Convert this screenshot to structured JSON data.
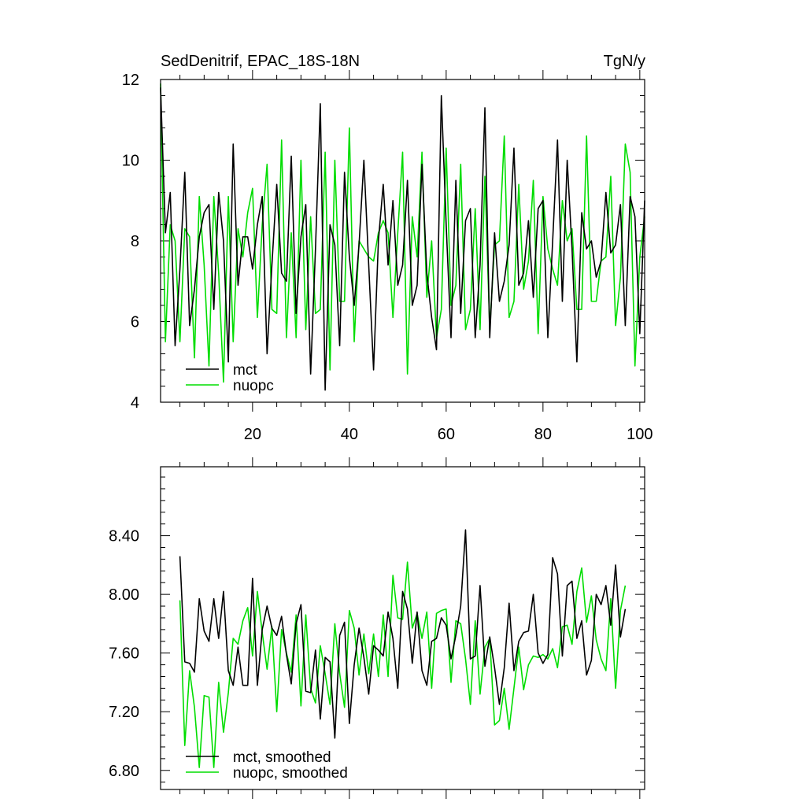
{
  "chart_data": [
    {
      "type": "line",
      "title": "SedDenitrif, EPAC_18S-18N",
      "units": "TgN/y",
      "xlim": [
        1,
        101
      ],
      "ylim": [
        4,
        12
      ],
      "xticks": [
        20,
        40,
        60,
        80,
        100
      ],
      "yticks": [
        4,
        6,
        8,
        10,
        12
      ],
      "ytick_labels": [
        "4",
        "6",
        "8",
        "10",
        "12"
      ],
      "legend_position": "bottom-left",
      "grid": false,
      "series": [
        {
          "name": "mct",
          "color": "#000000",
          "x": [
            1,
            2,
            3,
            4,
            5,
            6,
            7,
            8,
            9,
            10,
            11,
            12,
            13,
            14,
            15,
            16,
            17,
            18,
            19,
            20,
            21,
            22,
            23,
            24,
            25,
            26,
            27,
            28,
            29,
            30,
            31,
            32,
            33,
            34,
            35,
            36,
            37,
            38,
            39,
            40,
            41,
            42,
            43,
            44,
            45,
            46,
            47,
            48,
            49,
            50,
            51,
            52,
            53,
            54,
            55,
            56,
            57,
            58,
            59,
            60,
            61,
            62,
            63,
            64,
            65,
            66,
            67,
            68,
            69,
            70,
            71,
            72,
            73,
            74,
            75,
            76,
            77,
            78,
            79,
            80,
            81,
            82,
            83,
            84,
            85,
            86,
            87,
            88,
            89,
            90,
            91,
            92,
            93,
            94,
            95,
            96,
            97,
            98,
            99,
            100,
            101
          ],
          "y": [
            11.8,
            8.2,
            9.2,
            5.4,
            7.3,
            9.7,
            5.9,
            6.8,
            8.1,
            8.7,
            8.9,
            6.3,
            9.2,
            8.0,
            5.0,
            10.4,
            6.9,
            8.1,
            8.1,
            7.3,
            8.4,
            9.1,
            5.2,
            7.4,
            9.4,
            7.2,
            7.0,
            10.1,
            6.2,
            8.1,
            8.9,
            4.7,
            7.8,
            11.4,
            4.3,
            8.4,
            7.9,
            5.4,
            9.7,
            7.6,
            6.4,
            7.9,
            10.0,
            7.4,
            4.8,
            8.0,
            9.4,
            7.4,
            9.0,
            6.9,
            7.4,
            9.5,
            6.4,
            6.9,
            9.9,
            7.2,
            6.1,
            5.3,
            11.6,
            8.4,
            5.6,
            9.5,
            6.2,
            8.5,
            8.8,
            5.6,
            7.4,
            11.3,
            5.6,
            8.2,
            6.5,
            7.0,
            7.9,
            10.3,
            6.9,
            7.2,
            8.5,
            6.6,
            8.8,
            9.0,
            5.6,
            8.0,
            10.5,
            6.5,
            10.0,
            7.8,
            5.0,
            8.7,
            7.8,
            8.0,
            7.1,
            7.5,
            9.2,
            7.7,
            7.9,
            8.9,
            5.9,
            9.1,
            8.6,
            5.7,
            9.0
          ]
        },
        {
          "name": "nuopc",
          "color": "#00dd00",
          "x": [
            1,
            2,
            3,
            4,
            5,
            6,
            7,
            8,
            9,
            10,
            11,
            12,
            13,
            14,
            15,
            16,
            17,
            18,
            19,
            20,
            21,
            22,
            23,
            24,
            25,
            26,
            27,
            28,
            29,
            30,
            31,
            32,
            33,
            34,
            35,
            36,
            37,
            38,
            39,
            40,
            41,
            42,
            43,
            44,
            45,
            46,
            47,
            48,
            49,
            50,
            51,
            52,
            53,
            54,
            55,
            56,
            57,
            58,
            59,
            60,
            61,
            62,
            63,
            64,
            65,
            66,
            67,
            68,
            69,
            70,
            71,
            72,
            73,
            74,
            75,
            76,
            77,
            78,
            79,
            80,
            81,
            82,
            83,
            84,
            85,
            86,
            87,
            88,
            89,
            90,
            91,
            92,
            93,
            94,
            95,
            96,
            97,
            98,
            99,
            100,
            101
          ],
          "y": [
            11.9,
            5.5,
            8.4,
            8.0,
            5.5,
            8.3,
            8.1,
            5.1,
            9.1,
            7.4,
            4.9,
            9.1,
            7.2,
            4.5,
            9.1,
            5.5,
            8.3,
            7.6,
            8.7,
            9.3,
            6.1,
            8.4,
            9.9,
            6.3,
            6.2,
            10.5,
            5.6,
            8.2,
            5.6,
            10.0,
            5.8,
            8.6,
            6.2,
            6.3,
            10.2,
            4.8,
            10.0,
            6.5,
            6.5,
            10.8,
            5.5,
            8.0,
            7.8,
            7.6,
            7.5,
            8.2,
            8.5,
            8.2,
            6.1,
            8.2,
            10.2,
            4.7,
            8.6,
            7.6,
            10.2,
            6.6,
            8.0,
            5.6,
            6.3,
            10.3,
            6.4,
            6.9,
            9.9,
            5.8,
            6.3,
            8.8,
            5.8,
            9.6,
            5.8,
            7.9,
            8.0,
            10.6,
            6.1,
            6.5,
            9.4,
            6.8,
            7.5,
            9.5,
            5.7,
            9.1,
            7.8,
            7.3,
            6.9,
            9.0,
            8.0,
            8.3,
            6.3,
            6.3,
            10.6,
            6.5,
            6.5,
            7.5,
            7.6,
            9.6,
            5.9,
            7.1,
            10.4,
            9.7,
            4.9,
            7.6,
            8.6
          ]
        }
      ]
    },
    {
      "type": "line",
      "xlim": [
        1,
        101
      ],
      "ylim": [
        6.67,
        8.87
      ],
      "xticks": [
        20,
        40,
        60,
        80,
        100
      ],
      "yticks": [
        6.8,
        7.2,
        7.6,
        8.0,
        8.4
      ],
      "ytick_labels": [
        "6.80",
        "7.20",
        "7.60",
        "8.00",
        "8.40"
      ],
      "legend_position": "bottom-left",
      "grid": false,
      "series": [
        {
          "name": "mct, smoothed",
          "color": "#000000",
          "x": [
            5,
            6,
            7,
            8,
            9,
            10,
            11,
            12,
            13,
            14,
            15,
            16,
            17,
            18,
            19,
            20,
            21,
            22,
            23,
            24,
            25,
            26,
            27,
            28,
            29,
            30,
            31,
            32,
            33,
            34,
            35,
            36,
            37,
            38,
            39,
            40,
            41,
            42,
            43,
            44,
            45,
            46,
            47,
            48,
            49,
            50,
            51,
            52,
            53,
            54,
            55,
            56,
            57,
            58,
            59,
            60,
            61,
            62,
            63,
            64,
            65,
            66,
            67,
            68,
            69,
            70,
            71,
            72,
            73,
            74,
            75,
            76,
            77,
            78,
            79,
            80,
            81,
            82,
            83,
            84,
            85,
            86,
            87,
            88,
            89,
            90,
            91,
            92,
            93,
            94,
            95,
            96,
            97
          ],
          "y": [
            8.26,
            7.54,
            7.53,
            7.47,
            7.97,
            7.75,
            7.68,
            7.97,
            7.7,
            8.02,
            7.48,
            7.38,
            7.64,
            7.38,
            7.38,
            8.11,
            7.38,
            7.76,
            7.92,
            7.77,
            7.72,
            7.85,
            7.59,
            7.39,
            7.8,
            7.93,
            7.34,
            7.33,
            7.62,
            7.15,
            7.57,
            7.54,
            7.02,
            7.72,
            7.81,
            7.12,
            7.52,
            7.77,
            7.57,
            7.32,
            7.65,
            7.62,
            7.58,
            7.88,
            7.7,
            7.36,
            8.02,
            7.9,
            7.53,
            7.88,
            7.48,
            7.38,
            7.68,
            7.7,
            7.84,
            7.79,
            7.56,
            7.72,
            7.92,
            8.44,
            7.56,
            7.58,
            8.06,
            7.51,
            7.71,
            7.5,
            7.25,
            7.5,
            7.94,
            7.48,
            7.68,
            7.74,
            7.75,
            8.0,
            7.6,
            7.53,
            7.59,
            8.25,
            8.14,
            7.58,
            8.06,
            8.09,
            7.7,
            7.82,
            7.45,
            7.55,
            8.0,
            7.93,
            8.06,
            7.79,
            8.2,
            7.71,
            7.9
          ]
        },
        {
          "name": "nuopc, smoothed",
          "color": "#00dd00",
          "x": [
            5,
            6,
            7,
            8,
            9,
            10,
            11,
            12,
            13,
            14,
            15,
            16,
            17,
            18,
            19,
            20,
            21,
            22,
            23,
            24,
            25,
            26,
            27,
            28,
            29,
            30,
            31,
            32,
            33,
            34,
            35,
            36,
            37,
            38,
            39,
            40,
            41,
            42,
            43,
            44,
            45,
            46,
            47,
            48,
            49,
            50,
            51,
            52,
            53,
            54,
            55,
            56,
            57,
            58,
            59,
            60,
            61,
            62,
            63,
            64,
            65,
            66,
            67,
            68,
            69,
            70,
            71,
            72,
            73,
            74,
            75,
            76,
            77,
            78,
            79,
            80,
            81,
            82,
            83,
            84,
            85,
            86,
            87,
            88,
            89,
            90,
            91,
            92,
            93,
            94,
            95,
            96,
            97
          ],
          "y": [
            7.96,
            6.97,
            7.48,
            7.23,
            6.82,
            7.31,
            7.3,
            6.82,
            7.4,
            7.06,
            7.33,
            7.7,
            7.66,
            7.82,
            7.91,
            7.58,
            8.02,
            7.74,
            7.49,
            7.78,
            7.2,
            7.76,
            7.6,
            7.47,
            7.86,
            7.24,
            7.86,
            7.36,
            7.26,
            7.65,
            7.46,
            7.25,
            7.8,
            7.46,
            7.23,
            7.89,
            7.77,
            7.45,
            7.73,
            7.46,
            7.73,
            7.44,
            7.86,
            7.44,
            8.13,
            7.84,
            7.83,
            8.22,
            7.77,
            7.87,
            7.7,
            7.88,
            7.36,
            7.87,
            7.89,
            7.9,
            7.4,
            7.82,
            7.8,
            7.56,
            7.25,
            7.82,
            7.32,
            7.64,
            7.7,
            7.11,
            7.14,
            7.36,
            7.08,
            7.36,
            7.64,
            7.35,
            7.52,
            7.58,
            7.57,
            7.59,
            7.56,
            7.63,
            7.5,
            7.78,
            7.79,
            7.66,
            8.02,
            8.18,
            7.81,
            7.99,
            7.69,
            7.56,
            7.48,
            7.97,
            7.36,
            7.89,
            8.06
          ]
        }
      ]
    }
  ]
}
